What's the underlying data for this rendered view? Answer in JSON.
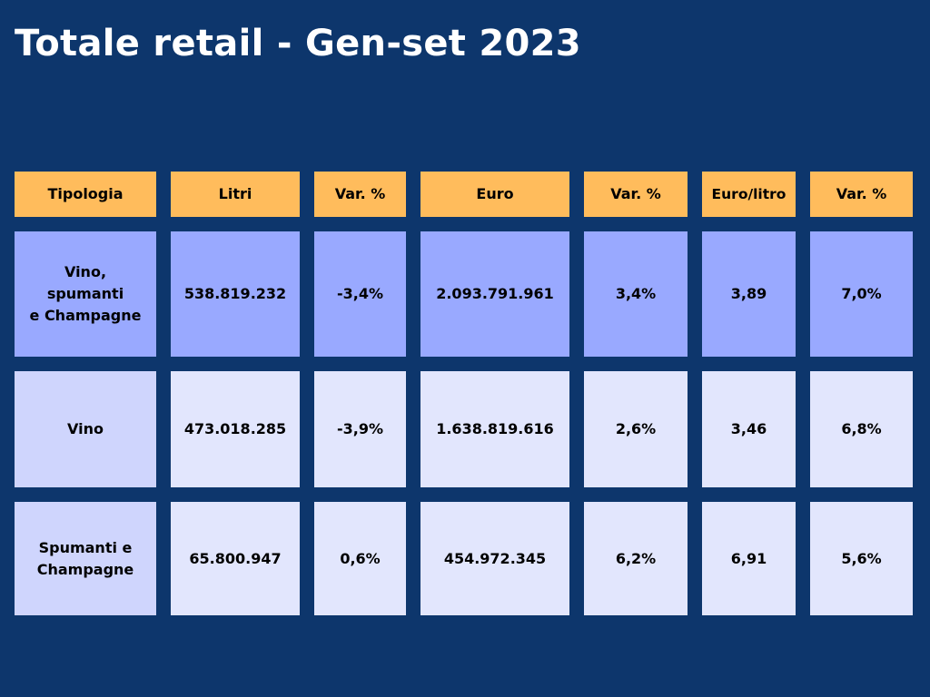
{
  "title": "Totale retail - Gen-set 2023",
  "colors": {
    "background": "#0d366c",
    "header": "#ffbc5c",
    "row_highlight": "#99a9ff",
    "row_light": "#e2e6fd",
    "label_light": "#cfd5fd"
  },
  "table": {
    "headers": [
      "Tipologia",
      "Litri",
      "Var. %",
      "Euro",
      "Var. %",
      "Euro/litro",
      "Var. %"
    ],
    "rows": [
      [
        "Vino,\nspumanti\ne Champagne",
        "538.819.232",
        "-3,4%",
        "2.093.791.961",
        "3,4%",
        "3,89",
        "7,0%"
      ],
      [
        "Vino",
        "473.018.285",
        "-3,9%",
        "1.638.819.616",
        "2,6%",
        "3,46",
        "6,8%"
      ],
      [
        "Spumanti e\nChampagne",
        "65.800.947",
        "0,6%",
        "454.972.345",
        "6,2%",
        "6,91",
        "5,6%"
      ]
    ]
  }
}
